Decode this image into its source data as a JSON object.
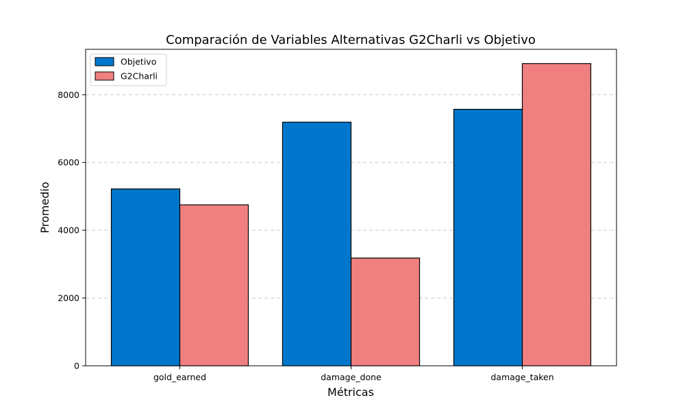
{
  "chart_data": {
    "type": "bar",
    "title": "Comparación de Variables Alternativas G2Charli vs Objetivo",
    "xlabel": "Métricas",
    "ylabel": "Promedio",
    "categories": [
      "gold_earned",
      "damage_done",
      "damage_taken"
    ],
    "series": [
      {
        "name": "Objetivo",
        "values": [
          5220,
          7190,
          7570
        ],
        "color": "#0077cc"
      },
      {
        "name": "G2Charli",
        "values": [
          4750,
          3180,
          8920
        ],
        "color": "#f08080"
      }
    ],
    "ylim": [
      0,
      9340
    ],
    "yticks": [
      0,
      2000,
      4000,
      6000,
      8000
    ],
    "grid": "y-dashed",
    "legend_position": "top-left"
  }
}
